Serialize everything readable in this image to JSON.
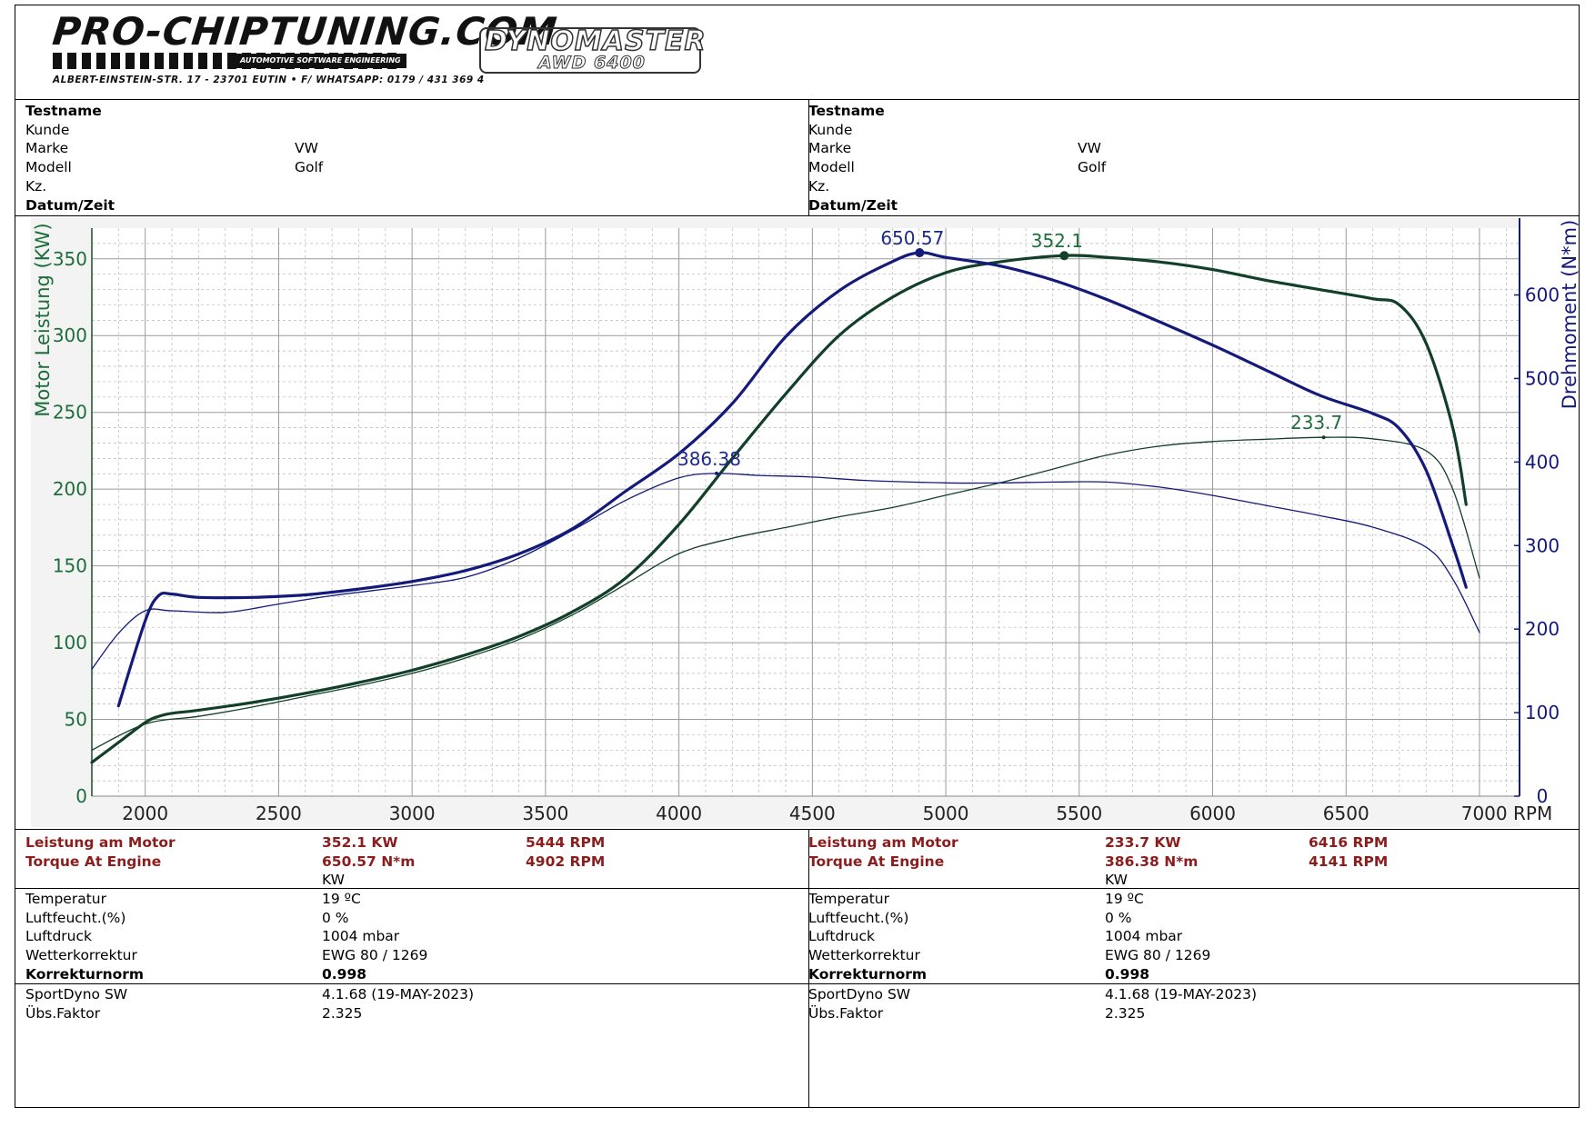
{
  "header": {
    "logo_main": "PRO-CHIPTUNING.COM",
    "logo_tagline": "AUTOMOTIVE SOFTWARE ENGINEERING",
    "address": "ALBERT-EINSTEIN-STR. 17 - 23701 EUTIN • F/ WHATSAPP: 0179 / 431 369 4",
    "dyno_title": "DYNOMASTER",
    "dyno_sub": "AWD 6400"
  },
  "info_left": {
    "labels": [
      "Testname",
      "Kunde",
      "Marke",
      "Modell",
      "Kz.",
      "Datum/Zeit"
    ],
    "values": [
      "",
      "",
      "VW",
      "Golf",
      "",
      ""
    ]
  },
  "info_right": {
    "labels": [
      "Testname",
      "Kunde",
      "Marke",
      "Modell",
      "Kz.",
      "Datum/Zeit"
    ],
    "values": [
      "",
      "",
      "VW",
      "Golf",
      "",
      ""
    ]
  },
  "chart_data": {
    "type": "line",
    "xlabel": "RPM",
    "ylabel_left": "Motor Leistung (KW)",
    "ylabel_right": "Drehmoment (N*m)",
    "xlim": [
      1800,
      7150
    ],
    "ylim_left": [
      0,
      370
    ],
    "ylim_right": [
      0,
      680
    ],
    "x_ticks": [
      2000,
      2500,
      3000,
      3500,
      4000,
      4500,
      5000,
      5500,
      6000,
      6500,
      7000
    ],
    "x_tick_labels": [
      "2000",
      "2500",
      "3000",
      "3500",
      "4000",
      "4500",
      "5000",
      "5500",
      "6000",
      "6500",
      "7000 RPM"
    ],
    "y_left_ticks": [
      0,
      50,
      100,
      150,
      200,
      250,
      300,
      350
    ],
    "y_right_ticks": [
      0,
      100,
      200,
      300,
      400,
      500,
      600
    ],
    "grid": true,
    "colors": {
      "power": "#123f28",
      "torque": "#141a7a",
      "grid": "#b7b7b7",
      "plot_bg": "#ffffff",
      "frame_bg": "#f3f3f3"
    },
    "series": [
      {
        "role": "power-run1",
        "axis": "left",
        "color": "#123f28",
        "width": 3.2,
        "points": [
          [
            1800,
            22
          ],
          [
            1900,
            35
          ],
          [
            2000,
            48
          ],
          [
            2050,
            52
          ],
          [
            2100,
            54
          ],
          [
            2200,
            56
          ],
          [
            2400,
            61
          ],
          [
            2600,
            67
          ],
          [
            2800,
            74
          ],
          [
            3000,
            82
          ],
          [
            3200,
            92
          ],
          [
            3400,
            104
          ],
          [
            3600,
            120
          ],
          [
            3800,
            142
          ],
          [
            4000,
            177
          ],
          [
            4200,
            220
          ],
          [
            4400,
            262
          ],
          [
            4600,
            300
          ],
          [
            4800,
            325
          ],
          [
            5000,
            341
          ],
          [
            5200,
            348
          ],
          [
            5444,
            352.1
          ],
          [
            5600,
            351
          ],
          [
            5800,
            348
          ],
          [
            6000,
            343
          ],
          [
            6200,
            336
          ],
          [
            6400,
            330
          ],
          [
            6600,
            324
          ],
          [
            6700,
            320
          ],
          [
            6800,
            295
          ],
          [
            6900,
            240
          ],
          [
            6950,
            190
          ]
        ]
      },
      {
        "role": "power-run2",
        "axis": "left",
        "color": "#123f28",
        "width": 1.3,
        "points": [
          [
            1800,
            30
          ],
          [
            2000,
            47
          ],
          [
            2200,
            52
          ],
          [
            2400,
            58
          ],
          [
            2600,
            65
          ],
          [
            2800,
            72
          ],
          [
            3000,
            80
          ],
          [
            3200,
            90
          ],
          [
            3400,
            102
          ],
          [
            3600,
            118
          ],
          [
            3800,
            138
          ],
          [
            4000,
            158
          ],
          [
            4200,
            168
          ],
          [
            4400,
            175
          ],
          [
            4600,
            182
          ],
          [
            4800,
            188
          ],
          [
            5000,
            196
          ],
          [
            5200,
            204
          ],
          [
            5400,
            213
          ],
          [
            5600,
            222
          ],
          [
            5800,
            228
          ],
          [
            6000,
            231
          ],
          [
            6200,
            232.5
          ],
          [
            6416,
            233.7
          ],
          [
            6600,
            232.8
          ],
          [
            6800,
            225
          ],
          [
            6900,
            200
          ],
          [
            7000,
            142
          ]
        ]
      },
      {
        "role": "torque-run1",
        "axis": "right",
        "color": "#141a7a",
        "width": 3.2,
        "points": [
          [
            1900,
            108
          ],
          [
            2000,
            210
          ],
          [
            2050,
            240
          ],
          [
            2100,
            242
          ],
          [
            2200,
            238
          ],
          [
            2400,
            238
          ],
          [
            2600,
            241
          ],
          [
            2800,
            248
          ],
          [
            3000,
            257
          ],
          [
            3200,
            270
          ],
          [
            3400,
            290
          ],
          [
            3600,
            320
          ],
          [
            3800,
            365
          ],
          [
            4000,
            410
          ],
          [
            4200,
            470
          ],
          [
            4400,
            550
          ],
          [
            4600,
            605
          ],
          [
            4800,
            640
          ],
          [
            4902,
            650.57
          ],
          [
            5000,
            645
          ],
          [
            5200,
            635
          ],
          [
            5400,
            618
          ],
          [
            5600,
            595
          ],
          [
            5800,
            568
          ],
          [
            6000,
            540
          ],
          [
            6200,
            510
          ],
          [
            6400,
            480
          ],
          [
            6600,
            458
          ],
          [
            6700,
            440
          ],
          [
            6800,
            390
          ],
          [
            6900,
            300
          ],
          [
            6950,
            250
          ]
        ]
      },
      {
        "role": "torque-run2",
        "axis": "right",
        "color": "#141a7a",
        "width": 1.3,
        "points": [
          [
            1800,
            152
          ],
          [
            1900,
            195
          ],
          [
            2000,
            222
          ],
          [
            2100,
            222
          ],
          [
            2300,
            220
          ],
          [
            2500,
            230
          ],
          [
            2700,
            240
          ],
          [
            3000,
            252
          ],
          [
            3200,
            262
          ],
          [
            3400,
            285
          ],
          [
            3600,
            318
          ],
          [
            3800,
            354
          ],
          [
            4000,
            381
          ],
          [
            4141,
            386.38
          ],
          [
            4300,
            384
          ],
          [
            4500,
            382
          ],
          [
            4700,
            378
          ],
          [
            5000,
            375
          ],
          [
            5200,
            375
          ],
          [
            5400,
            376
          ],
          [
            5600,
            376
          ],
          [
            5800,
            370
          ],
          [
            6000,
            360
          ],
          [
            6200,
            348
          ],
          [
            6400,
            336
          ],
          [
            6600,
            322
          ],
          [
            6800,
            298
          ],
          [
            6900,
            260
          ],
          [
            7000,
            196
          ]
        ]
      }
    ],
    "annotations": [
      {
        "text": "650.57",
        "series": "torque",
        "axis": "right",
        "x": 4902,
        "y": 650.57,
        "marker": true
      },
      {
        "text": "352.1",
        "series": "power",
        "axis": "left",
        "x": 5444,
        "y": 352.1,
        "marker": true
      },
      {
        "text": "386.38",
        "series": "torque",
        "axis": "right",
        "x": 4141,
        "y": 386.38,
        "marker": false
      },
      {
        "text": "233.7",
        "series": "power",
        "axis": "left",
        "x": 6416,
        "y": 233.7,
        "marker": false
      }
    ]
  },
  "results_left": {
    "rows": [
      {
        "label": "Leistung am Motor",
        "value": "352.1 KW",
        "rpm": "5444 RPM"
      },
      {
        "label": "Torque At Engine",
        "value": "650.57 N*m",
        "rpm": "4902 RPM"
      }
    ],
    "unit": "KW"
  },
  "results_right": {
    "rows": [
      {
        "label": "Leistung am Motor",
        "value": "233.7 KW",
        "rpm": "6416 RPM"
      },
      {
        "label": "Torque At Engine",
        "value": "386.38 N*m",
        "rpm": "4141 RPM"
      }
    ],
    "unit": "KW"
  },
  "conditions_left": {
    "labels": [
      "Temperatur",
      "Luftfeucht.(%)",
      "Luftdruck",
      "Wetterkorrektur",
      "Korrekturnorm"
    ],
    "values": [
      "19 ºC",
      "0 %",
      "1004 mbar",
      "EWG 80 / 1269",
      "0.998"
    ]
  },
  "conditions_right": {
    "labels": [
      "Temperatur",
      "Luftfeucht.(%)",
      "Luftdruck",
      "Wetterkorrektur",
      "Korrekturnorm"
    ],
    "values": [
      "19 ºC",
      "0 %",
      "1004 mbar",
      "EWG 80 / 1269",
      "0.998"
    ]
  },
  "software_left": {
    "labels": [
      "SportDyno SW",
      "Übs.Faktor"
    ],
    "values": [
      "4.1.68 (19-MAY-2023)",
      "2.325"
    ]
  },
  "software_right": {
    "labels": [
      "SportDyno SW",
      "Übs.Faktor"
    ],
    "values": [
      "4.1.68 (19-MAY-2023)",
      "2.325"
    ]
  }
}
